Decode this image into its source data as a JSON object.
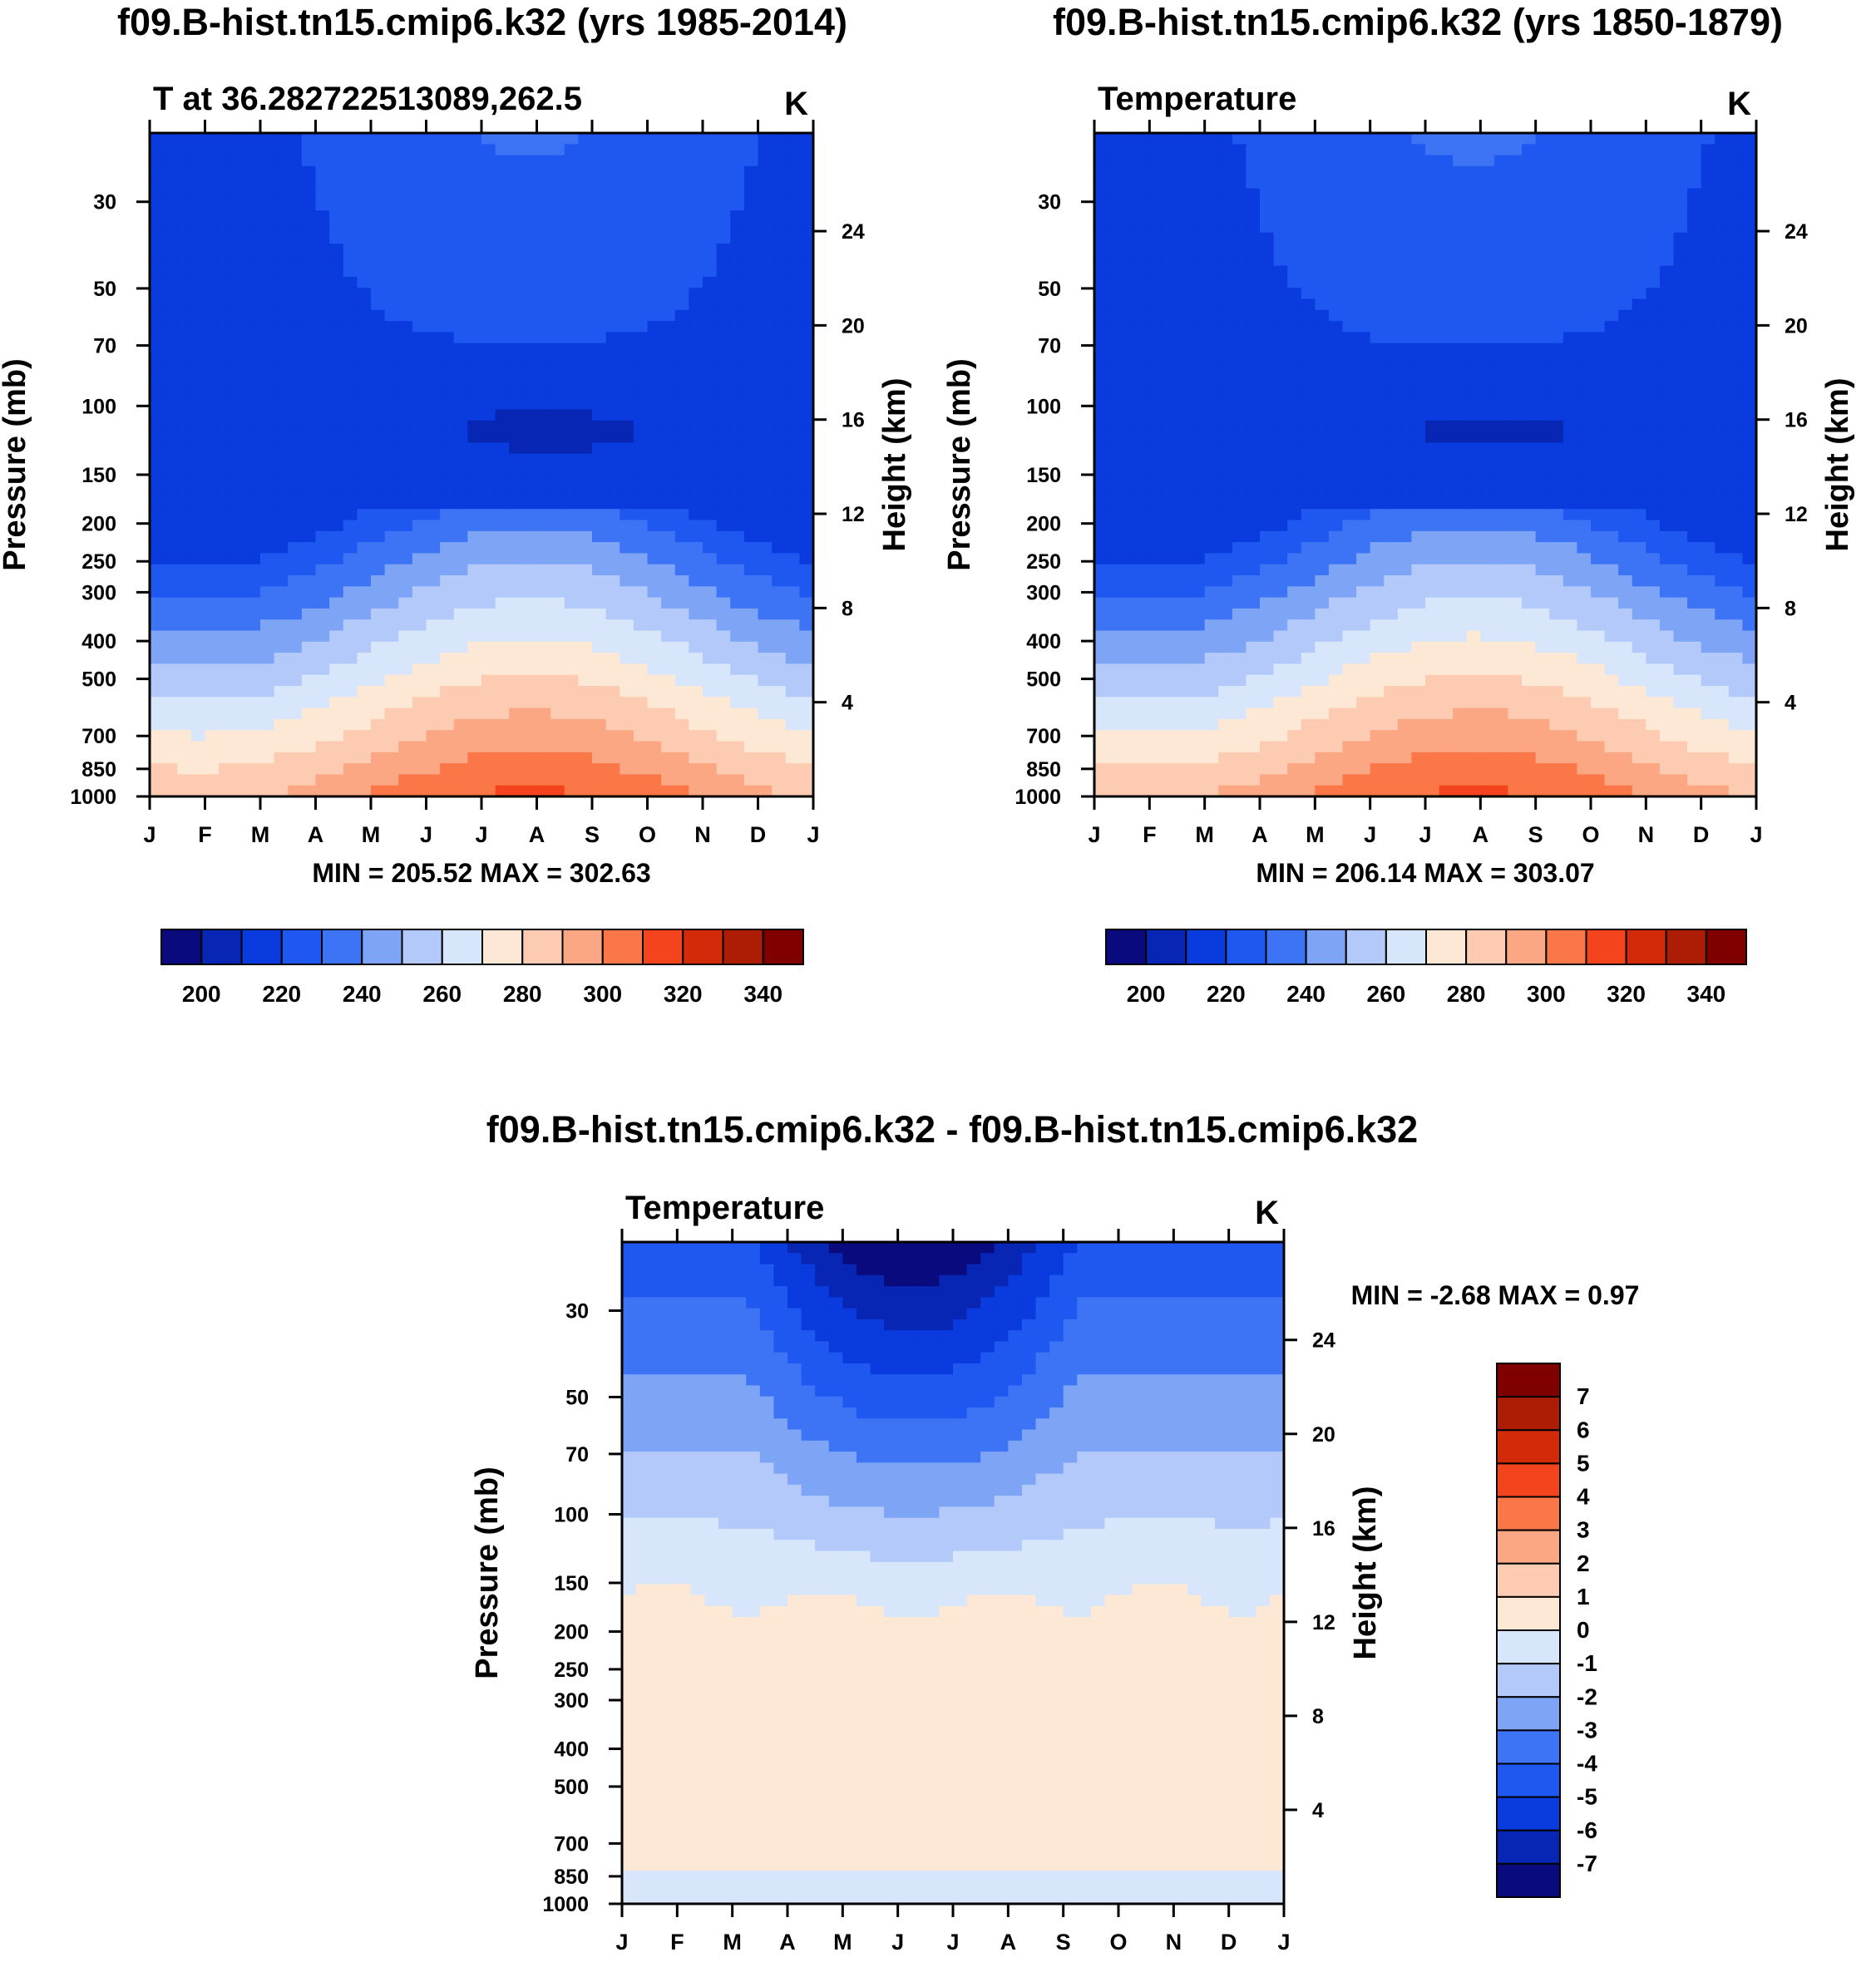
{
  "colors": {
    "abs_palette": [
      "#0a0a7f",
      "#0726b3",
      "#0a3bde",
      "#1e58f0",
      "#3d74f5",
      "#7ea4f6",
      "#b2c9fa",
      "#d7e6fb",
      "#fde8d6",
      "#fdcbb1",
      "#fca783",
      "#fb7748",
      "#f4441e",
      "#d32a0a",
      "#ad1c05",
      "#800000"
    ],
    "diff_palette": [
      "#0a0a7f",
      "#0726b3",
      "#0a3bde",
      "#1e58f0",
      "#3d74f5",
      "#7ea4f6",
      "#b2c9fa",
      "#d7e6fb",
      "#fde8d6",
      "#fdcbb1",
      "#fca783",
      "#fb7748",
      "#f4441e",
      "#d32a0a",
      "#ad1c05",
      "#800000"
    ]
  },
  "chart_data": [
    {
      "type": "contour",
      "title": "f09.B-hist.tn15.cmip6.k32 (yrs 1985-2014)",
      "left_string": "T at 36.282722513089,262.5",
      "right_string": "K",
      "ylabel": "Pressure (mb)",
      "y2label": "Height (km)",
      "x_ticks": [
        "J",
        "F",
        "M",
        "A",
        "M",
        "J",
        "J",
        "A",
        "S",
        "O",
        "N",
        "D",
        "J"
      ],
      "pressure_ticks": [
        "30",
        "50",
        "70",
        "100",
        "150",
        "200",
        "250",
        "300",
        "400",
        "500",
        "700",
        "850",
        "1000"
      ],
      "height_ticks": [
        "24",
        "20",
        "16",
        "12",
        "8",
        "4"
      ],
      "ylim_mb": [
        20,
        1000
      ],
      "min_max": "MIN = 205.52 MAX = 302.63",
      "z_min": 205.52,
      "z_max": 302.63,
      "contour_levels": [
        190,
        200,
        210,
        220,
        230,
        240,
        250,
        260,
        270,
        280,
        290,
        300,
        310,
        320,
        330,
        340,
        350
      ],
      "colorbar_labels": [
        "200",
        "220",
        "240",
        "260",
        "280",
        "300",
        "320",
        "340"
      ]
    },
    {
      "type": "contour",
      "title": "f09.B-hist.tn15.cmip6.k32 (yrs 1850-1879)",
      "left_string": "Temperature",
      "right_string": "K",
      "ylabel": "Pressure (mb)",
      "y2label": "Height (km)",
      "x_ticks": [
        "J",
        "F",
        "M",
        "A",
        "M",
        "J",
        "J",
        "A",
        "S",
        "O",
        "N",
        "D",
        "J"
      ],
      "pressure_ticks": [
        "30",
        "50",
        "70",
        "100",
        "150",
        "200",
        "250",
        "300",
        "400",
        "500",
        "700",
        "850",
        "1000"
      ],
      "height_ticks": [
        "24",
        "20",
        "16",
        "12",
        "8",
        "4"
      ],
      "ylim_mb": [
        20,
        1000
      ],
      "min_max": "MIN = 206.14 MAX = 303.07",
      "z_min": 206.14,
      "z_max": 303.07,
      "contour_levels": [
        190,
        200,
        210,
        220,
        230,
        240,
        250,
        260,
        270,
        280,
        290,
        300,
        310,
        320,
        330,
        340,
        350
      ],
      "colorbar_labels": [
        "200",
        "220",
        "240",
        "260",
        "280",
        "300",
        "320",
        "340"
      ]
    },
    {
      "type": "contour",
      "title": "f09.B-hist.tn15.cmip6.k32 - f09.B-hist.tn15.cmip6.k32",
      "left_string": "Temperature",
      "right_string": "K",
      "ylabel": "Pressure (mb)",
      "y2label": "Height (km)",
      "x_ticks": [
        "J",
        "F",
        "M",
        "A",
        "M",
        "J",
        "J",
        "A",
        "S",
        "O",
        "N",
        "D",
        "J"
      ],
      "pressure_ticks": [
        "30",
        "50",
        "70",
        "100",
        "150",
        "200",
        "250",
        "300",
        "400",
        "500",
        "700",
        "850",
        "1000"
      ],
      "height_ticks": [
        "24",
        "20",
        "16",
        "12",
        "8",
        "4"
      ],
      "ylim_mb": [
        20,
        1000
      ],
      "min_max": "MIN =  -2.68 MAX =   0.97",
      "z_min": -2.68,
      "z_max": 0.97,
      "contour_levels": [
        -8,
        -7,
        -6,
        -5,
        -4,
        -3,
        -2,
        -1,
        0,
        1,
        2,
        3,
        4,
        5,
        6,
        7,
        8
      ],
      "colorbar_labels": [
        "7",
        "6",
        "5",
        "4",
        "3",
        "2",
        "1",
        "0",
        "-1",
        "-2",
        "-3",
        "-4",
        "-5",
        "-6",
        "-7"
      ]
    }
  ]
}
